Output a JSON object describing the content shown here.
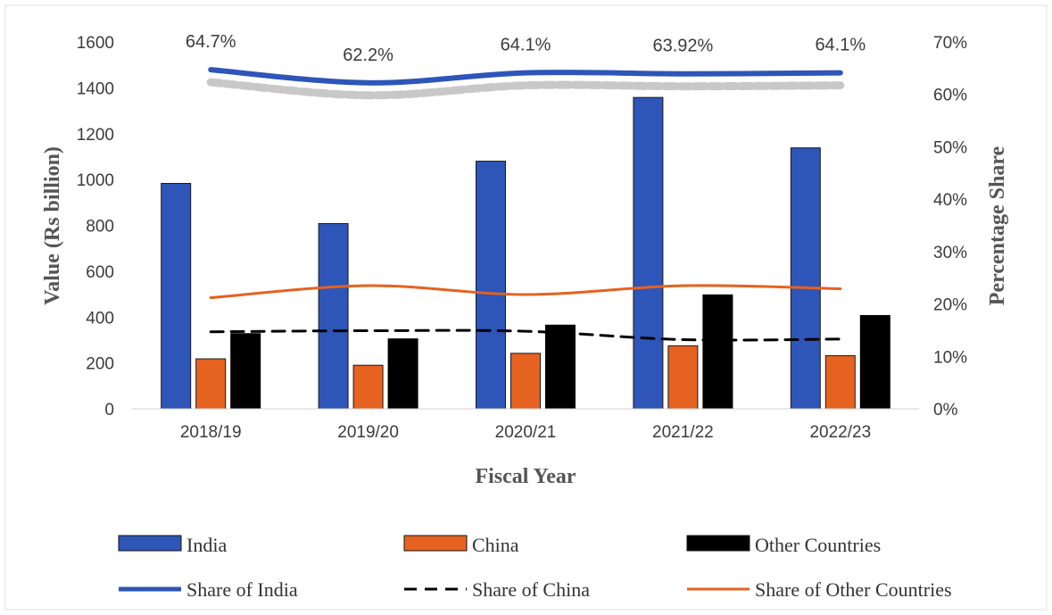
{
  "chart_data": {
    "type": "bar",
    "categories": [
      "2018/19",
      "2019/20",
      "2020/21",
      "2021/22",
      "2022/23"
    ],
    "xlabel": "Fiscal Year",
    "ylabel": "Value (Rs billion)",
    "y2label": "Percentage Share",
    "ylim": [
      0,
      1600
    ],
    "y2lim": [
      0,
      70
    ],
    "yticks": [
      "0",
      "200",
      "400",
      "600",
      "800",
      "1000",
      "1200",
      "1400",
      "1600"
    ],
    "y2ticks": [
      "0%",
      "10%",
      "20%",
      "30%",
      "40%",
      "50%",
      "60%",
      "70%"
    ],
    "grid": false,
    "legend_position": "bottom",
    "series": [
      {
        "name": "India",
        "kind": "bar",
        "axis": "left",
        "color": "#2e55b8",
        "values": [
          983,
          808,
          1080,
          1358,
          1138
        ]
      },
      {
        "name": "China",
        "kind": "bar",
        "axis": "left",
        "color": "#e56220",
        "values": [
          218,
          190,
          242,
          275,
          232
        ]
      },
      {
        "name": "Other Countries",
        "kind": "bar",
        "axis": "left",
        "color": "#000000",
        "values": [
          328,
          305,
          365,
          497,
          407
        ]
      },
      {
        "name": "Share of India",
        "kind": "line",
        "axis": "right",
        "style": "solid",
        "color": "#2e55b8",
        "values": [
          64.7,
          62.2,
          64.1,
          63.92,
          64.1
        ],
        "labels": [
          "64.7%",
          "62.2%",
          "64.1%",
          "63.92%",
          "64.1%"
        ]
      },
      {
        "name": "Share of China",
        "kind": "line",
        "axis": "right",
        "style": "dashed",
        "color": "#000000",
        "values": [
          14.7,
          14.9,
          14.8,
          13.2,
          13.3
        ]
      },
      {
        "name": "Share of Other Countries",
        "kind": "line",
        "axis": "right",
        "style": "solid",
        "color": "#e56220",
        "values": [
          21.2,
          23.5,
          21.8,
          23.5,
          22.9
        ]
      }
    ]
  }
}
